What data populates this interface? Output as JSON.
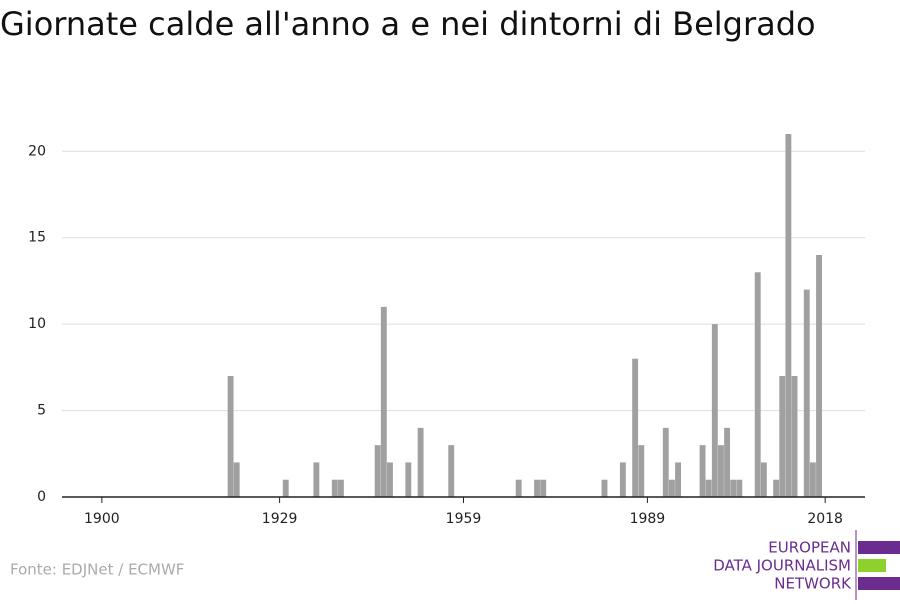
{
  "chart_data": {
    "type": "bar",
    "title": "Giornate calde all'anno a e nei dintorni di Belgrado",
    "source": "Fonte: EDJNet / ECMWF",
    "logo": [
      "EUROPEAN",
      "DATA JOURNALISM",
      "NETWORK"
    ],
    "x": [
      1921,
      1922,
      1930,
      1935,
      1938,
      1939,
      1945,
      1946,
      1947,
      1950,
      1952,
      1957,
      1968,
      1971,
      1972,
      1982,
      1985,
      1987,
      1988,
      1992,
      1993,
      1994,
      1998,
      1999,
      2000,
      2001,
      2002,
      2003,
      2004,
      2007,
      2008,
      2010,
      2011,
      2012,
      2013,
      2015,
      2016,
      2017
    ],
    "values": [
      7,
      2,
      1,
      2,
      1,
      1,
      3,
      11,
      2,
      2,
      4,
      3,
      1,
      1,
      1,
      1,
      2,
      8,
      3,
      4,
      1,
      2,
      3,
      1,
      10,
      3,
      4,
      1,
      1,
      13,
      2,
      1,
      7,
      21,
      7,
      12,
      2,
      14
    ],
    "color": "#a0a0a0",
    "xlim": [
      1893.5,
      2024.5
    ],
    "xticks": [
      1900,
      1929,
      1959,
      1989,
      2018
    ],
    "ylim": [
      0,
      21
    ],
    "yticks": [
      0,
      5,
      10,
      15,
      20
    ],
    "grid": true
  }
}
